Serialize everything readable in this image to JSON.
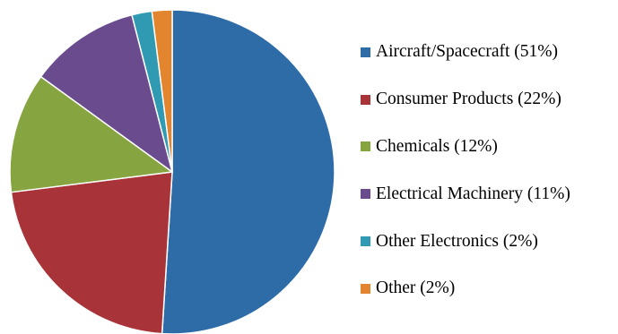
{
  "chart_data": {
    "type": "pie",
    "title": "",
    "start_angle_deg": 0,
    "direction": "clockwise",
    "legend_position": "right",
    "series": [
      {
        "slices": [
          {
            "label": "Aircraft/Spacecraft",
            "value": 51,
            "legend_text": "Aircraft/Spacecraft (51%)",
            "color": "#2E6CA8"
          },
          {
            "label": "Consumer Products",
            "value": 22,
            "legend_text": "Consumer Products (22%)",
            "color": "#A8343A"
          },
          {
            "label": "Chemicals",
            "value": 12,
            "legend_text": "Chemicals (12%)",
            "color": "#86A43F"
          },
          {
            "label": "Electrical Machinery",
            "value": 11,
            "legend_text": "Electrical Machinery (11%)",
            "color": "#6A4C8E"
          },
          {
            "label": "Other Electronics",
            "value": 2,
            "legend_text": "Other Electronics (2%)",
            "color": "#2F9AB2"
          },
          {
            "label": "Other",
            "value": 2,
            "legend_text": "Other (2%)",
            "color": "#E2852E"
          }
        ]
      }
    ]
  }
}
